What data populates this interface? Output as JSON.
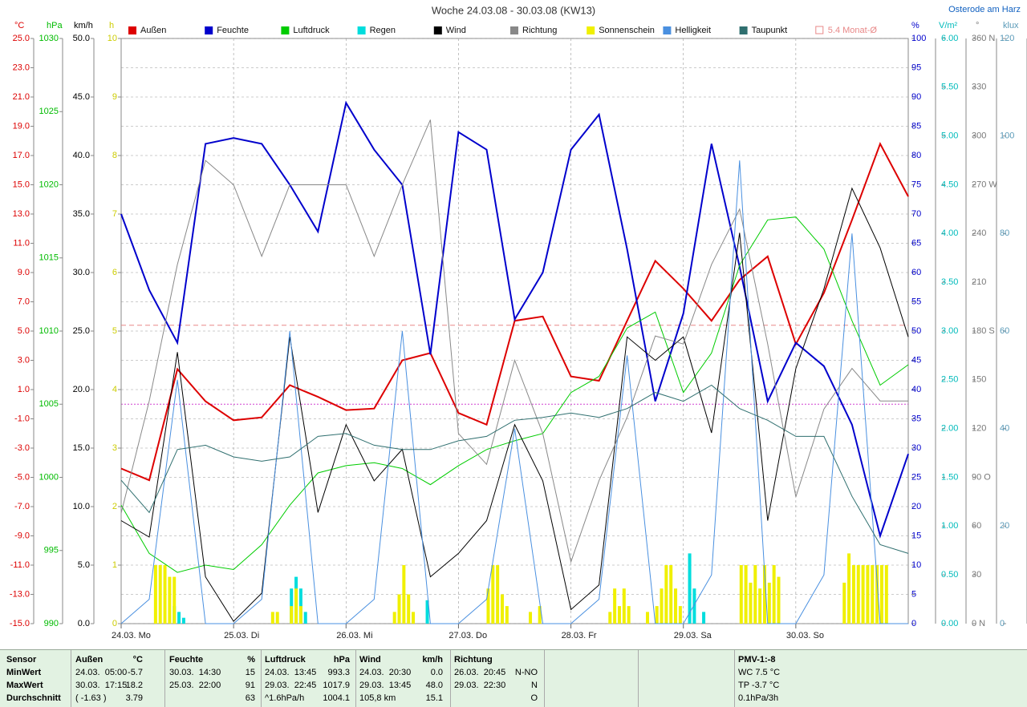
{
  "chart_data": {
    "type": "line",
    "title": "Woche 24.03.08 - 30.03.08 (KW13)",
    "subtitle": "Osterode am Harz",
    "x": [
      0,
      6,
      12,
      18,
      24,
      30,
      36,
      42,
      48,
      54,
      60,
      66,
      72,
      78,
      84,
      90,
      96,
      102,
      108,
      114,
      120,
      126,
      132,
      138,
      144,
      150,
      156,
      162,
      168
    ],
    "xlim": [
      0,
      168
    ],
    "xticks": [
      {
        "value": 0,
        "label": "24.03. Mo"
      },
      {
        "value": 24,
        "label": "25.03. Di"
      },
      {
        "value": 48,
        "label": "26.03. Mi"
      },
      {
        "value": 72,
        "label": "27.03. Do"
      },
      {
        "value": 96,
        "label": "28.03. Fr"
      },
      {
        "value": 120,
        "label": "29.03. Sa"
      },
      {
        "value": 144,
        "label": "30.03. So"
      }
    ],
    "grid": true,
    "axes": [
      {
        "unit": "°C",
        "side": "left",
        "color": "#dd0000",
        "lim": [
          -15,
          25
        ],
        "ticks": [
          {
            "value": 25,
            "label": "25.0"
          },
          {
            "value": 23,
            "label": "23.0"
          },
          {
            "value": 21,
            "label": "21.0"
          },
          {
            "value": 19,
            "label": "19.0"
          },
          {
            "value": 17,
            "label": "17.0"
          },
          {
            "value": 15,
            "label": "15.0"
          },
          {
            "value": 13,
            "label": "13.0"
          },
          {
            "value": 11,
            "label": "11.0"
          },
          {
            "value": 9,
            "label": "9.0"
          },
          {
            "value": 7,
            "label": "7.0"
          },
          {
            "value": 5,
            "label": "5.0"
          },
          {
            "value": 3,
            "label": "3.0"
          },
          {
            "value": 1,
            "label": "1.0"
          },
          {
            "value": -1,
            "label": "-1.0"
          },
          {
            "value": -3,
            "label": "-3.0"
          },
          {
            "value": -5,
            "label": "-5.0"
          },
          {
            "value": -7,
            "label": "-7.0"
          },
          {
            "value": -9,
            "label": "-9.0"
          },
          {
            "value": -11,
            "label": "-11.0"
          },
          {
            "value": -13,
            "label": "-13.0"
          },
          {
            "value": -15,
            "label": "-15.0"
          }
        ]
      },
      {
        "unit": "hPa",
        "side": "left",
        "color": "#00bb00",
        "lim": [
          990,
          1030
        ],
        "ticks": [
          1030,
          1025,
          1020,
          1015,
          1010,
          1005,
          1000,
          995,
          990
        ]
      },
      {
        "unit": "km/h",
        "side": "left",
        "color": "#000000",
        "lim": [
          0,
          50
        ],
        "ticks": [
          {
            "value": 50,
            "label": "50.0"
          },
          {
            "value": 45,
            "label": "45.0"
          },
          {
            "value": 40,
            "label": "40.0"
          },
          {
            "value": 35,
            "label": "35.0"
          },
          {
            "value": 30,
            "label": "30.0"
          },
          {
            "value": 25,
            "label": "25.0"
          },
          {
            "value": 20,
            "label": "20.0"
          },
          {
            "value": 15,
            "label": "15.0"
          },
          {
            "value": 10,
            "label": "10.0"
          },
          {
            "value": 5,
            "label": "5.0"
          },
          {
            "value": 0,
            "label": "0.0"
          }
        ]
      },
      {
        "unit": "h",
        "side": "left",
        "color": "#cccc00",
        "lim": [
          0,
          10
        ],
        "ticks": [
          10,
          9,
          8,
          7,
          6,
          5,
          4,
          3,
          2,
          1,
          0
        ]
      },
      {
        "unit": "%",
        "side": "right",
        "color": "#0000cc",
        "lim": [
          0,
          100
        ],
        "ticks": [
          100,
          95,
          90,
          85,
          80,
          75,
          70,
          65,
          60,
          55,
          50,
          45,
          40,
          35,
          30,
          25,
          20,
          15,
          10,
          5,
          0
        ]
      },
      {
        "unit": "V/m²",
        "side": "right",
        "color": "#00bbbb",
        "lim": [
          0,
          6
        ],
        "ticks": [
          {
            "value": 6,
            "label": "6.00"
          },
          {
            "value": 5.5,
            "label": "5.50"
          },
          {
            "value": 5,
            "label": "5.00"
          },
          {
            "value": 4.5,
            "label": "4.50"
          },
          {
            "value": 4,
            "label": "4.00"
          },
          {
            "value": 3.5,
            "label": "3.50"
          },
          {
            "value": 3,
            "label": "3.00"
          },
          {
            "value": 2.5,
            "label": "2.50"
          },
          {
            "value": 2,
            "label": "2.00"
          },
          {
            "value": 1.5,
            "label": "1.50"
          },
          {
            "value": 1,
            "label": "1.00"
          },
          {
            "value": 0.5,
            "label": "0.50"
          },
          {
            "value": 0,
            "label": "0.00"
          }
        ]
      },
      {
        "unit": "°",
        "side": "right",
        "color": "#777777",
        "lim": [
          0,
          360
        ],
        "ticks": [
          {
            "value": 360,
            "label": "360 N"
          },
          330,
          300,
          {
            "value": 270,
            "label": "270 W"
          },
          240,
          210,
          {
            "value": 180,
            "label": "180 S"
          },
          150,
          120,
          {
            "value": 90,
            "label": "90 O"
          },
          60,
          30,
          {
            "value": 0,
            "label": "0 N"
          }
        ]
      },
      {
        "unit": "klux",
        "side": "right",
        "color": "#5a9ab8",
        "lim": [
          0,
          120
        ],
        "ticks": [
          120,
          100,
          80,
          60,
          40,
          20,
          0
        ]
      }
    ],
    "series": [
      {
        "name": "Außen",
        "color": "#dd0000",
        "axis": 0,
        "width": 2,
        "values": [
          -4.4,
          -5.2,
          2.4,
          0.2,
          -1.1,
          -0.9,
          1.3,
          0.5,
          -0.4,
          -0.3,
          3.0,
          3.5,
          -0.6,
          -1.4,
          5.7,
          6.0,
          1.9,
          1.6,
          5.7,
          9.8,
          7.9,
          5.7,
          8.5,
          10.1,
          4.1,
          7.6,
          12.6,
          17.8,
          14.2
        ]
      },
      {
        "name": "Feuchte",
        "color": "#0000cc",
        "axis": 4,
        "width": 2,
        "values": [
          70,
          57,
          48,
          82,
          83,
          82,
          75,
          67,
          89,
          81,
          75,
          46,
          84,
          81,
          52,
          60,
          81,
          87,
          64,
          38,
          53,
          82,
          61,
          38,
          48,
          44,
          34,
          15,
          29
        ]
      },
      {
        "name": "Luftdruck",
        "color": "#00cc00",
        "axis": 1,
        "width": 1,
        "values": [
          998.1,
          994.8,
          993.5,
          994,
          993.7,
          995.4,
          998.1,
          1000.3,
          1000.8,
          1001,
          1000.6,
          999.5,
          1000.8,
          1001.9,
          1002.5,
          1003,
          1005.8,
          1006.9,
          1010.2,
          1011.3,
          1005.8,
          1008.5,
          1014.5,
          1017.6,
          1017.8,
          1015.6,
          1010.7,
          1006.3,
          1007.7
        ]
      },
      {
        "name": "Regen",
        "color": "#00dddd",
        "axis": 3,
        "kind": "bar",
        "x": [
          11,
          12,
          13,
          36,
          37,
          38,
          39,
          65,
          121,
          122,
          124
        ],
        "values": [
          0.3,
          0.2,
          0.1,
          0.6,
          0.8,
          0.6,
          0.2,
          0.4,
          1.2,
          0.6,
          0.2
        ]
      },
      {
        "name": "Wind",
        "color": "#000000",
        "axis": 2,
        "width": 1,
        "values": [
          8.8,
          7.4,
          23.2,
          4,
          0.2,
          2.6,
          24.5,
          9.5,
          17,
          12.2,
          14.9,
          4,
          6,
          8.8,
          17,
          12.2,
          1.2,
          3.3,
          24.5,
          22.5,
          24.5,
          16.3,
          33.4,
          8.8,
          21.8,
          28.6,
          37.2,
          32.1,
          24.5
        ]
      },
      {
        "name": "Richtung",
        "color": "#888888",
        "axis": 6,
        "width": 1,
        "values": [
          68,
          137,
          221,
          285,
          270,
          226,
          270,
          270,
          270,
          226,
          270,
          310,
          117,
          98,
          162,
          117,
          38,
          88,
          127,
          177,
          172,
          221,
          255,
          172,
          78,
          132,
          157,
          137,
          137
        ]
      },
      {
        "name": "Sonnenschein",
        "color": "#f0f000",
        "axis": 3,
        "kind": "bar",
        "x": [
          7,
          8,
          9,
          10,
          11,
          32,
          33,
          36,
          37,
          38,
          58,
          59,
          60,
          61,
          62,
          78,
          79,
          80,
          81,
          82,
          87,
          89,
          104,
          105,
          106,
          107,
          108,
          112,
          114,
          115,
          116,
          117,
          118,
          119,
          132,
          133,
          134,
          135,
          136,
          137,
          138,
          139,
          140,
          154,
          155,
          156,
          157,
          158,
          159,
          160,
          161,
          162,
          163
        ],
        "values": [
          1,
          1,
          1,
          0.8,
          0.8,
          0.2,
          0.2,
          0.3,
          0.6,
          0.3,
          0.2,
          0.5,
          1,
          0.5,
          0.2,
          0.6,
          1,
          1,
          0.5,
          0.3,
          0.2,
          0.3,
          0.2,
          0.6,
          0.3,
          0.6,
          0.3,
          0.2,
          0.3,
          0.6,
          1,
          1,
          0.6,
          0.3,
          1,
          1,
          0.7,
          1,
          0.6,
          1,
          0.7,
          1,
          0.8,
          0.7,
          1.2,
          1,
          1,
          1,
          1,
          1,
          1,
          1,
          1
        ]
      },
      {
        "name": "Helligkeit",
        "color": "#4a90e0",
        "axis": 7,
        "width": 1,
        "values": [
          0,
          5,
          50,
          0,
          0,
          5,
          60,
          0,
          0,
          5,
          60,
          0,
          0,
          5,
          40,
          0,
          0,
          5,
          55,
          0,
          0,
          10,
          95,
          0,
          0,
          10,
          80,
          0,
          0
        ]
      },
      {
        "name": "Taupunkt",
        "color": "#2f6f6f",
        "axis": 0,
        "width": 1,
        "values": [
          -5.2,
          -7.4,
          -3.1,
          -2.8,
          -3.6,
          -3.9,
          -3.6,
          -2.2,
          -2,
          -2.8,
          -3.1,
          -3.1,
          -2.5,
          -2.2,
          -1.1,
          -0.9,
          -0.6,
          -0.9,
          -0.3,
          0.8,
          0.2,
          1.3,
          -0.3,
          -1.1,
          -2.2,
          -2.2,
          -6.3,
          -9.6,
          -10.2
        ]
      }
    ],
    "reference": {
      "name": "5.4 Monat-Ø",
      "value": 5.4,
      "axis": 0,
      "color": "#e88888"
    }
  },
  "table": {
    "header": [
      "Sensor",
      "Außen",
      "°C",
      "Feuchte",
      "%",
      "Luftdruck",
      "hPa",
      "Wind",
      "km/h",
      "Richtung",
      null,
      "PMV-1:-8"
    ],
    "rows": [
      [
        "MinWert",
        "24.03.  05:00",
        "-5.7",
        "30.03.  14:30",
        "15",
        "24.03.  13:45",
        "993.3",
        "24.03.  20:30",
        "0.0",
        "26.03.  20:45",
        "N-NO",
        "WC 7.5 °C"
      ],
      [
        "MaxWert",
        "30.03.  17:15",
        "18.2",
        "25.03.  22:00",
        "91",
        "29.03.  22:45",
        "1017.9",
        "29.03.  13:45",
        "48.0",
        "29.03.  22:30",
        "N",
        "TP -3.7 °C"
      ],
      [
        "Durchschnitt",
        "( -1.63 )",
        "3.79",
        null,
        "63",
        "^1.6hPa/h",
        "1004.1",
        "105,8 km",
        "15.1",
        null,
        "O",
        "0.1hPa/3h"
      ]
    ]
  }
}
